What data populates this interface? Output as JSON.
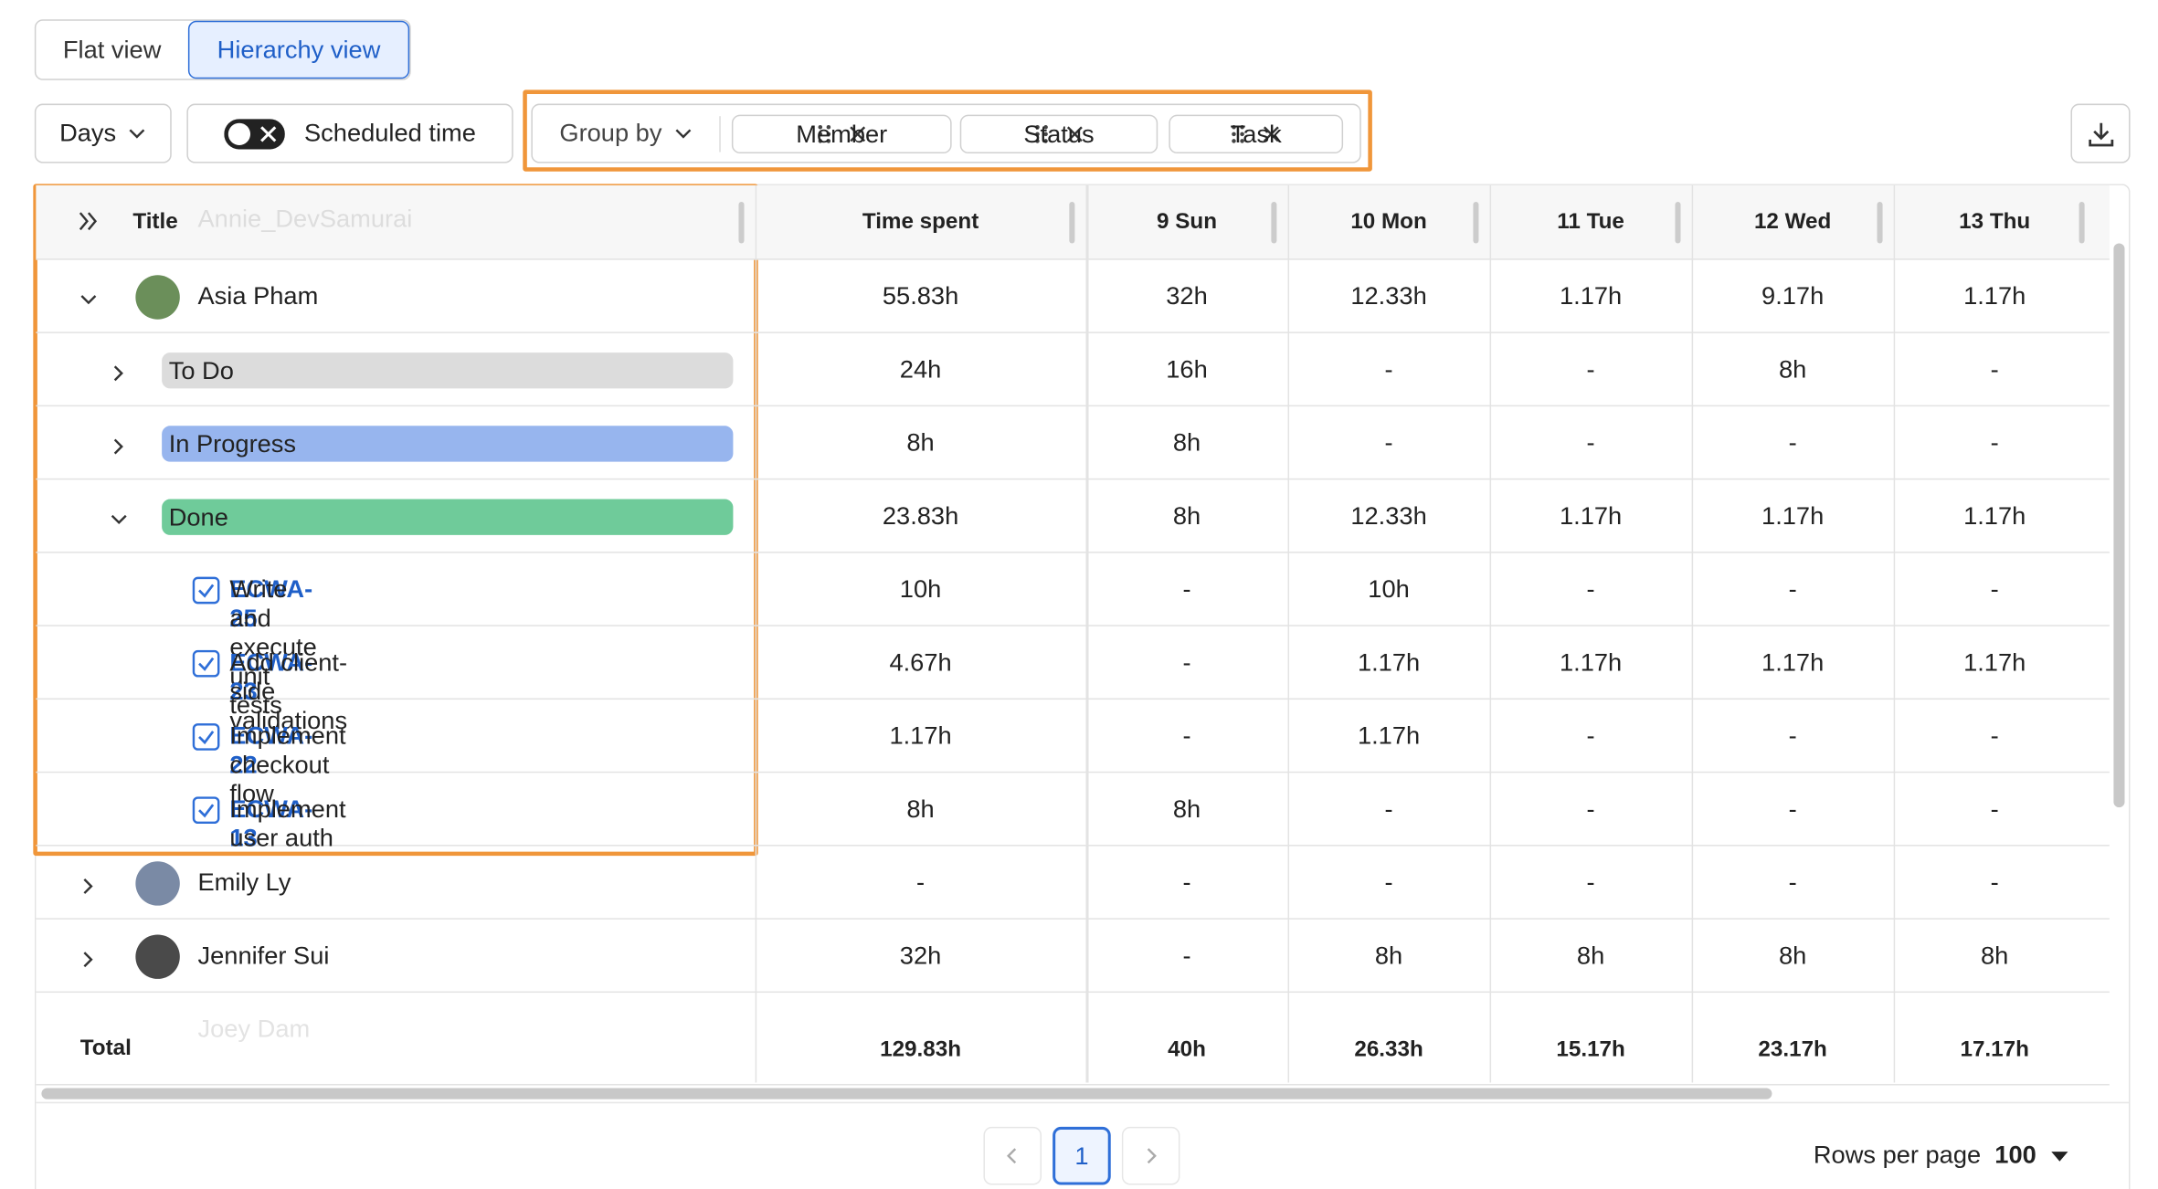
{
  "view_toggle": [
    "Flat view",
    "Hierarchy view"
  ],
  "toolbar": {
    "period": "Days",
    "scheduled_toggle": "Scheduled time",
    "group_by": "Group by",
    "groups": [
      "Member",
      "Status",
      "Task"
    ]
  },
  "table": {
    "columns": [
      "Title",
      "Time spent",
      "9 Sun",
      "10 Mon",
      "11 Tue",
      "12 Wed",
      "13 Thu"
    ],
    "ghost_rows": [
      "Annie_DevSamurai",
      "Joey Dam"
    ],
    "rows": [
      {
        "kind": "member",
        "title": "Asia Pham",
        "expanded": true,
        "cells": [
          "55.83h",
          "32h",
          "12.33h",
          "1.17h",
          "9.17h",
          "1.17h"
        ]
      },
      {
        "kind": "status",
        "title": "To Do",
        "color": "#dcdcdc",
        "expanded": false,
        "cells": [
          "24h",
          "16h",
          "-",
          "-",
          "8h",
          "-"
        ]
      },
      {
        "kind": "status",
        "title": "In Progress",
        "color": "#97b5ee",
        "expanded": false,
        "cells": [
          "8h",
          "8h",
          "-",
          "-",
          "-",
          "-"
        ]
      },
      {
        "kind": "status",
        "title": "Done",
        "color": "#6fcb9a",
        "expanded": true,
        "cells": [
          "23.83h",
          "8h",
          "12.33h",
          "1.17h",
          "1.17h",
          "1.17h"
        ]
      },
      {
        "kind": "task",
        "key": "ECWA-25",
        "title": "Write and execute unit tests",
        "cells": [
          "10h",
          "-",
          "10h",
          "-",
          "-",
          "-"
        ]
      },
      {
        "kind": "task",
        "key": "ECWA-23",
        "title": "Add client-side validations",
        "cells": [
          "4.67h",
          "-",
          "1.17h",
          "1.17h",
          "1.17h",
          "1.17h"
        ]
      },
      {
        "kind": "task",
        "key": "ECWA-22",
        "title": "Implement checkout flow",
        "cells": [
          "1.17h",
          "-",
          "1.17h",
          "-",
          "-",
          "-"
        ]
      },
      {
        "kind": "task",
        "key": "ECWA-13",
        "title": "Implement user auth",
        "cells": [
          "8h",
          "8h",
          "-",
          "-",
          "-",
          "-"
        ]
      },
      {
        "kind": "member",
        "title": "Emily Ly",
        "expanded": false,
        "cells": [
          "-",
          "-",
          "-",
          "-",
          "-",
          "-"
        ]
      },
      {
        "kind": "member",
        "title": "Jennifer Sui",
        "expanded": false,
        "cells": [
          "32h",
          "-",
          "8h",
          "8h",
          "8h",
          "8h"
        ]
      }
    ],
    "total": {
      "title": "Total",
      "cells": [
        "129.83h",
        "40h",
        "26.33h",
        "15.17h",
        "23.17h",
        "17.17h"
      ]
    }
  },
  "pagination": {
    "page": "1",
    "rows_per_page_label": "Rows per page",
    "rows_per_page": "100"
  }
}
